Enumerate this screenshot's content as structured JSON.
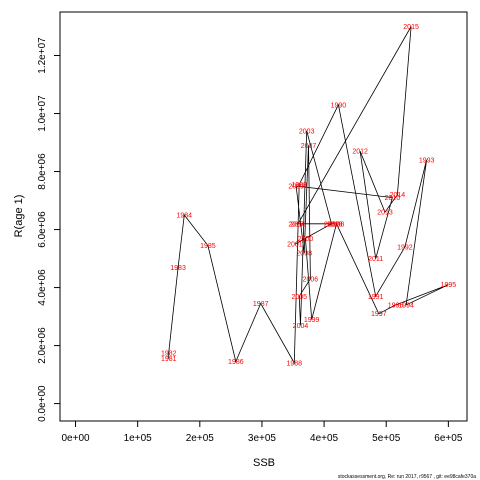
{
  "chart_data": {
    "type": "line",
    "title": "",
    "xlabel": "SSB",
    "ylabel": "R(age 1)",
    "xlim": [
      -25000,
      630000
    ],
    "ylim": [
      -600000,
      13500000
    ],
    "xticks": [
      0,
      100000,
      200000,
      300000,
      400000,
      500000,
      600000
    ],
    "xtick_labels": [
      "0e+00",
      "1e+05",
      "2e+05",
      "3e+05",
      "4e+05",
      "5e+05",
      "6e+05"
    ],
    "yticks": [
      0,
      2000000,
      4000000,
      6000000,
      8000000,
      10000000,
      12000000
    ],
    "ytick_labels": [
      "0.0e+00",
      "2.0e+06",
      "4.0e+06",
      "6.0e+06",
      "8.0e+06",
      "1.0e+07",
      "1.2e+07"
    ],
    "grid": false,
    "label_color": "#ff0000",
    "line_color": "#000000",
    "points": [
      {
        "year": "1981",
        "x": 150000,
        "y": 1550000
      },
      {
        "year": "1982",
        "x": 150000,
        "y": 1750000
      },
      {
        "year": "1983",
        "x": 165000,
        "y": 4700000
      },
      {
        "year": "1984",
        "x": 175000,
        "y": 6500000
      },
      {
        "year": "1985",
        "x": 213000,
        "y": 5450000
      },
      {
        "year": "1986",
        "x": 258000,
        "y": 1450000
      },
      {
        "year": "1987",
        "x": 298000,
        "y": 3450000
      },
      {
        "year": "1988",
        "x": 352000,
        "y": 1400000
      },
      {
        "year": "1989",
        "x": 360000,
        "y": 7550000
      },
      {
        "year": "1990",
        "x": 423000,
        "y": 10300000
      },
      {
        "year": "1991",
        "x": 483000,
        "y": 3700000
      },
      {
        "year": "1992",
        "x": 530000,
        "y": 5400000
      },
      {
        "year": "1993",
        "x": 565000,
        "y": 8400000
      },
      {
        "year": "1994",
        "x": 532000,
        "y": 3400000
      },
      {
        "year": "1995",
        "x": 600000,
        "y": 4100000
      },
      {
        "year": "1996",
        "x": 515000,
        "y": 3400000
      },
      {
        "year": "1997",
        "x": 488000,
        "y": 3100000
      },
      {
        "year": "1998",
        "x": 420000,
        "y": 6200000
      },
      {
        "year": "1999",
        "x": 380000,
        "y": 2900000
      },
      {
        "year": "2000",
        "x": 370000,
        "y": 5700000
      },
      {
        "year": "2001",
        "x": 353000,
        "y": 5500000
      },
      {
        "year": "2002",
        "x": 412000,
        "y": 6200000
      },
      {
        "year": "2003",
        "x": 372000,
        "y": 9400000
      },
      {
        "year": "2004",
        "x": 362000,
        "y": 2700000
      },
      {
        "year": "2005",
        "x": 360000,
        "y": 3700000
      },
      {
        "year": "2006",
        "x": 378000,
        "y": 4300000
      },
      {
        "year": "2007",
        "x": 375000,
        "y": 8900000
      },
      {
        "year": "2008",
        "x": 368000,
        "y": 5200000
      },
      {
        "year": "2009",
        "x": 355000,
        "y": 7500000
      },
      {
        "year": "2010",
        "x": 510000,
        "y": 7100000
      },
      {
        "year": "2011",
        "x": 483000,
        "y": 5000000
      },
      {
        "year": "2012",
        "x": 458000,
        "y": 8700000
      },
      {
        "year": "2013",
        "x": 498000,
        "y": 6600000
      },
      {
        "year": "2014",
        "x": 518000,
        "y": 7200000
      },
      {
        "year": "2015",
        "x": 540000,
        "y": 13000000
      },
      {
        "year": "2016",
        "x": 358000,
        "y": 6200000
      },
      {
        "year": "2017",
        "x": 355000,
        "y": 6200000
      },
      {
        "year": "2018",
        "x": 417000,
        "y": 6200000
      }
    ]
  },
  "footer": {
    "text": "stockassessment.org, Re: run 2017, r9567 , git: ee98cafe370a"
  }
}
